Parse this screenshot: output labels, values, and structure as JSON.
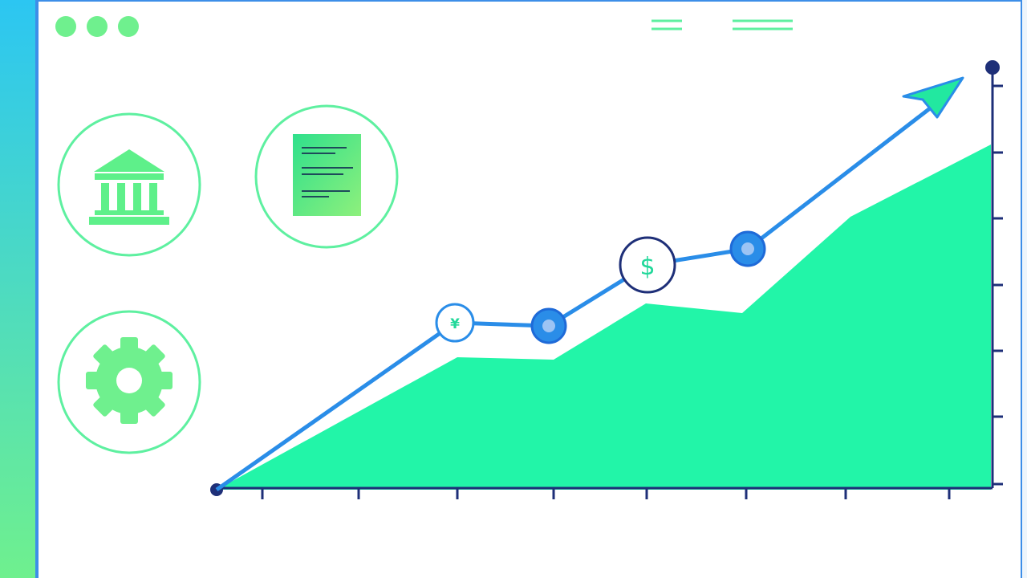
{
  "window": {
    "controls": [
      "close",
      "minimize",
      "maximize"
    ],
    "menu_icons": [
      "menu-lines-icon",
      "menu-lines-icon"
    ]
  },
  "sidebar_icons": [
    "bank-icon",
    "document-icon",
    "gear-icon"
  ],
  "chart": {
    "trend_markers": [
      {
        "symbol": "¥",
        "style": "outlined"
      },
      {
        "symbol": "",
        "style": "filled"
      },
      {
        "symbol": "$",
        "style": "outlined"
      },
      {
        "symbol": "",
        "style": "filled"
      }
    ]
  },
  "colors": {
    "accent_blue": "#2a8de8",
    "accent_green": "#22f5a8",
    "navy": "#1e2f78",
    "icon_green": "#5ef08a"
  }
}
